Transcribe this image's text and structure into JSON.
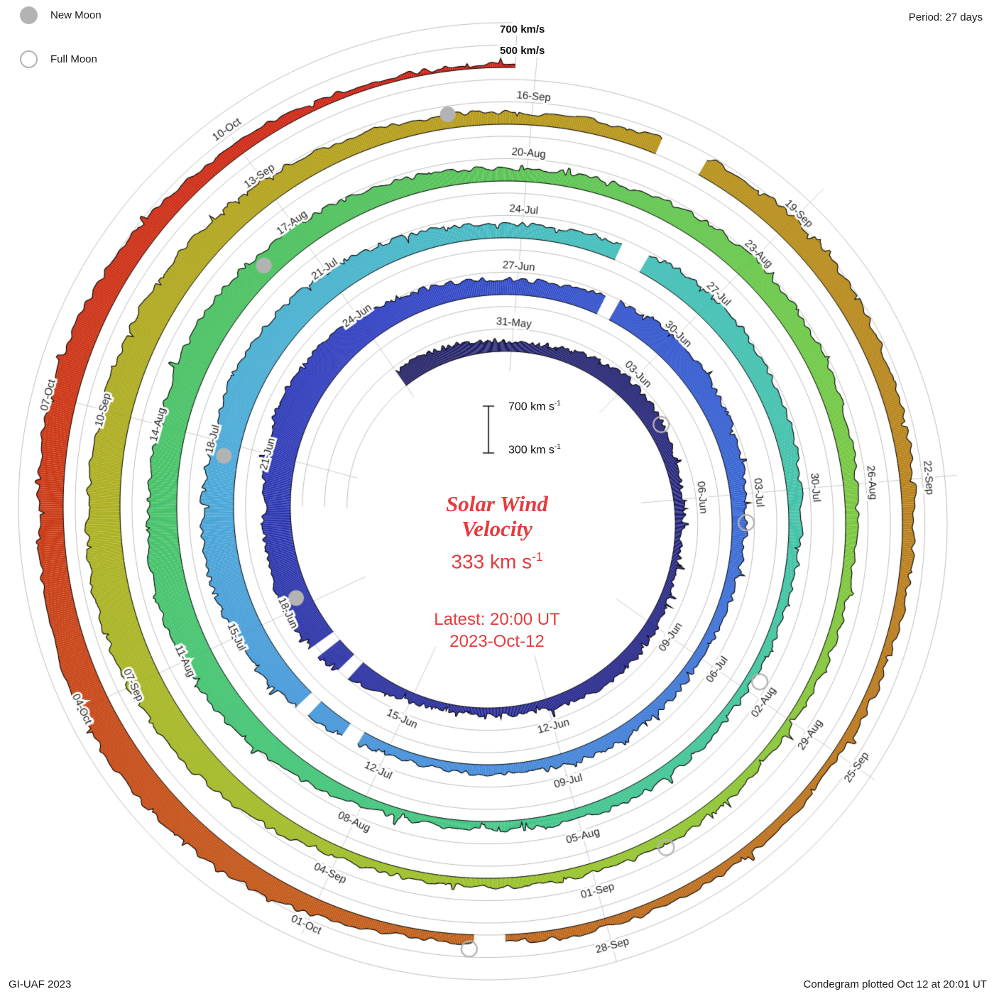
{
  "legend": {
    "new_moon": "New Moon",
    "full_moon": "Full Moon"
  },
  "header": {
    "period": "Period: 27 days"
  },
  "outer_refs": {
    "line_700": "700 km/s",
    "line_500": "500 km/s"
  },
  "scale_bar": {
    "top": "700 km s",
    "bottom": "300 km s",
    "exp": "-1"
  },
  "center": {
    "title_line1": "Solar Wind",
    "title_line2": "Velocity",
    "value": "333 km s",
    "value_exp": "-1",
    "latest_line1": "Latest: 20:00 UT",
    "latest_line2": "2023-Oct-12"
  },
  "footer": {
    "left": "GI-UAF 2023",
    "right": "Condegram plotted Oct 12 at 20:01 UT"
  },
  "colors": {
    "accent_red": "#e63b3f",
    "grid": "#bcbcbc",
    "spoke": "#cacaca",
    "moon_gray": "#b3b3b3",
    "edge": "#000000",
    "label_text": "#1c1c1c"
  },
  "chart_data": {
    "type": "area",
    "subtype": "condegram-spiral",
    "title": "Solar Wind Velocity",
    "radial_axis": "velocity (km/s)",
    "angular_axis": "date, one turn = 27 days, clockwise",
    "period_days": 27,
    "start_date": "2023-05-28",
    "latest_label": "2023-Oct-12 20:00 UT",
    "latest_velocity_kms": 333,
    "baseline_kms": 300,
    "grid_levels_kms": [
      300,
      500,
      700
    ],
    "daily_velocity_kms": [
      450,
      440,
      420,
      380,
      400,
      440,
      470,
      450,
      410,
      380,
      360,
      370,
      410,
      430,
      420,
      390,
      370,
      360,
      380,
      470,
      540,
      580,
      560,
      530,
      570,
      610,
      580,
      540,
      490,
      450,
      430,
      450,
      490,
      520,
      500,
      470,
      440,
      410,
      390,
      380,
      400,
      420,
      410,
      390,
      380,
      390,
      450,
      520,
      570,
      600,
      580,
      550,
      580,
      560,
      520,
      480,
      440,
      420,
      440,
      480,
      510,
      490,
      460,
      430,
      400,
      380,
      370,
      390,
      410,
      400,
      380,
      370,
      390,
      460,
      530,
      570,
      590,
      560,
      540,
      570,
      550,
      510,
      470,
      430,
      410,
      430,
      470,
      500,
      480,
      450,
      420,
      390,
      380,
      370,
      390,
      400,
      390,
      380,
      370,
      390,
      470,
      550,
      600,
      620,
      590,
      560,
      580,
      550,
      510,
      460,
      420,
      400,
      430,
      470,
      500,
      480,
      450,
      420,
      400,
      380,
      370,
      380,
      390,
      380,
      370,
      380,
      450,
      520,
      560,
      580,
      550,
      520,
      540,
      510,
      460,
      410,
      370,
      333
    ],
    "date_labels": [
      {
        "day": 3,
        "label": "31-May"
      },
      {
        "day": 6,
        "label": "03-Jun"
      },
      {
        "day": 9,
        "label": "06-Jun"
      },
      {
        "day": 12,
        "label": "09-Jun"
      },
      {
        "day": 15,
        "label": "12-Jun"
      },
      {
        "day": 18,
        "label": "15-Jun"
      },
      {
        "day": 21,
        "label": "18-Jun"
      },
      {
        "day": 24,
        "label": "21-Jun"
      },
      {
        "day": 27,
        "label": "24-Jun"
      },
      {
        "day": 30,
        "label": "27-Jun"
      },
      {
        "day": 33,
        "label": "30-Jun"
      },
      {
        "day": 36,
        "label": "03-Jul"
      },
      {
        "day": 39,
        "label": "06-Jul"
      },
      {
        "day": 42,
        "label": "09-Jul"
      },
      {
        "day": 45,
        "label": "12-Jul"
      },
      {
        "day": 48,
        "label": "15-Jul"
      },
      {
        "day": 51,
        "label": "18-Jul"
      },
      {
        "day": 54,
        "label": "21-Jul"
      },
      {
        "day": 57,
        "label": "24-Jul"
      },
      {
        "day": 60,
        "label": "27-Jul"
      },
      {
        "day": 63,
        "label": "30-Jul"
      },
      {
        "day": 66,
        "label": "02-Aug"
      },
      {
        "day": 69,
        "label": "05-Aug"
      },
      {
        "day": 72,
        "label": "08-Aug"
      },
      {
        "day": 75,
        "label": "11-Aug"
      },
      {
        "day": 78,
        "label": "14-Aug"
      },
      {
        "day": 81,
        "label": "17-Aug"
      },
      {
        "day": 84,
        "label": "20-Aug"
      },
      {
        "day": 87,
        "label": "23-Aug"
      },
      {
        "day": 90,
        "label": "26-Aug"
      },
      {
        "day": 93,
        "label": "29-Aug"
      },
      {
        "day": 96,
        "label": "01-Sep"
      },
      {
        "day": 99,
        "label": "04-Sep"
      },
      {
        "day": 102,
        "label": "07-Sep"
      },
      {
        "day": 105,
        "label": "10-Sep"
      },
      {
        "day": 108,
        "label": "13-Sep"
      },
      {
        "day": 111,
        "label": "16-Sep"
      },
      {
        "day": 114,
        "label": "19-Sep"
      },
      {
        "day": 117,
        "label": "22-Sep"
      },
      {
        "day": 120,
        "label": "25-Sep"
      },
      {
        "day": 123,
        "label": "28-Sep"
      },
      {
        "day": 126,
        "label": "01-Oct"
      },
      {
        "day": 129,
        "label": "04-Oct"
      },
      {
        "day": 132,
        "label": "07-Oct"
      },
      {
        "day": 135,
        "label": "10-Oct"
      }
    ],
    "new_moon_days": [
      21.2,
      50.8,
      80.4,
      110.1
    ],
    "full_moon_days": [
      7.2,
      36.5,
      65.8,
      95.1,
      124.4
    ],
    "gap_days": [
      [
        19.3,
        19.55
      ],
      [
        20.0,
        20.2
      ],
      [
        31.6,
        31.85
      ],
      [
        45.5,
        45.75
      ],
      [
        46.4,
        46.6
      ],
      [
        58.5,
        58.9
      ],
      [
        112.4,
        112.9
      ],
      [
        124.05,
        124.35
      ]
    ],
    "palette": [
      {
        "day": 0,
        "color": "#14125a"
      },
      {
        "day": 15,
        "color": "#1c1f8a"
      },
      {
        "day": 27,
        "color": "#2737c0"
      },
      {
        "day": 36,
        "color": "#2f5fd2"
      },
      {
        "day": 43,
        "color": "#3f86d8"
      },
      {
        "day": 51,
        "color": "#45a8d8"
      },
      {
        "day": 58,
        "color": "#3fbcba"
      },
      {
        "day": 66,
        "color": "#3ec49c"
      },
      {
        "day": 73,
        "color": "#40c474"
      },
      {
        "day": 81,
        "color": "#4ac05c"
      },
      {
        "day": 88,
        "color": "#6cc846"
      },
      {
        "day": 96,
        "color": "#97c42c"
      },
      {
        "day": 103,
        "color": "#aab322"
      },
      {
        "day": 110,
        "color": "#b69c1a"
      },
      {
        "day": 116,
        "color": "#b8861c"
      },
      {
        "day": 122,
        "color": "#bd6f1e"
      },
      {
        "day": 127,
        "color": "#c4561a"
      },
      {
        "day": 131,
        "color": "#cb3a16"
      },
      {
        "day": 137,
        "color": "#d02418"
      }
    ]
  }
}
